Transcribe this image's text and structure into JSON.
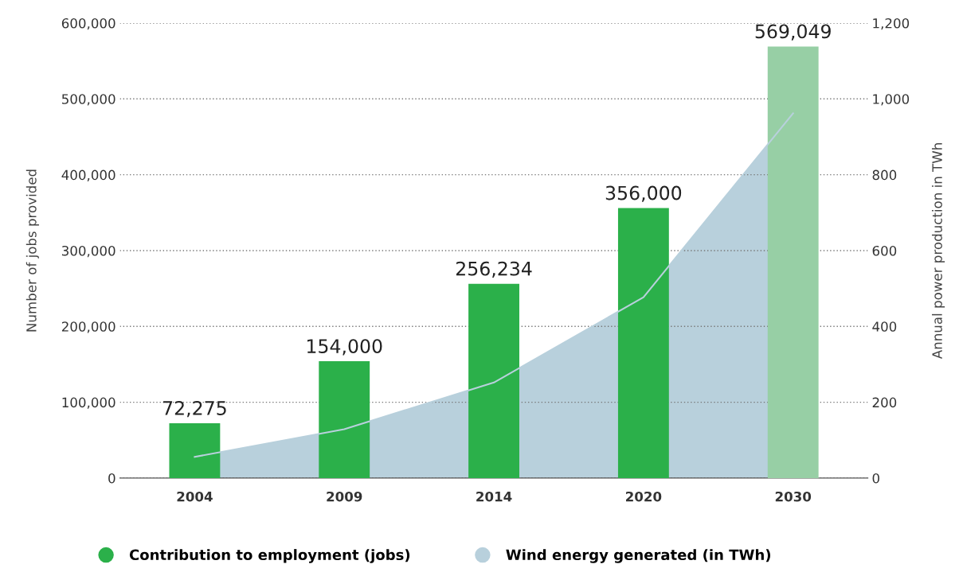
{
  "chart_data": {
    "type": "bar",
    "categories": [
      "2004",
      "2009",
      "2014",
      "2020",
      "2030"
    ],
    "ylabel": "Number of jobs provided",
    "y2label": "Annual power production in TWh",
    "series": [
      {
        "name": "Contribution to employment (jobs)",
        "color": "#2bb04a",
        "colors": [
          "#2bb04a",
          "#2bb04a",
          "#2bb04a",
          "#2bb04a",
          "#97cfa5"
        ],
        "values": [
          72275,
          154000,
          256234,
          356000,
          569049
        ],
        "value_labels": [
          "72,275",
          "154,000",
          "256,234",
          "356,000",
          "569,049"
        ]
      },
      {
        "name": "Wind energy generated (in TWh)",
        "type": "area",
        "axis": "y2",
        "color": "#b8d0dc",
        "values": [
          56,
          129,
          252,
          477,
          962
        ]
      }
    ],
    "ylim": [
      0,
      600000
    ],
    "yticks": [
      0,
      {
        "value": 100000,
        "label": "100,000"
      },
      {
        "value": 200000,
        "label": "200,000"
      },
      {
        "value": 300000,
        "label": "300,000"
      },
      {
        "value": 400000,
        "label": "400,000"
      },
      {
        "value": 500000,
        "label": "500,000"
      },
      {
        "value": 600000,
        "label": "600,000"
      }
    ],
    "y2lim": [
      0,
      1200
    ],
    "y2ticks": [
      0,
      200,
      400,
      600,
      800,
      {
        "value": 1000,
        "label": "1,000"
      },
      {
        "value": 1200,
        "label": "1,200"
      }
    ],
    "grid": "y",
    "legend": "bottom"
  }
}
